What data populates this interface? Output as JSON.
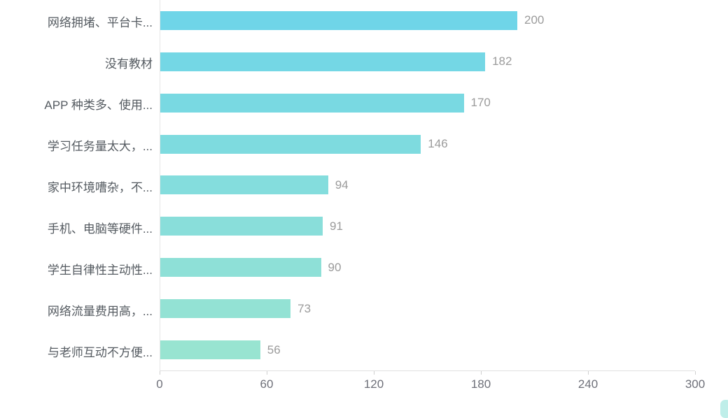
{
  "chart_data": {
    "type": "bar",
    "orientation": "horizontal",
    "title": "",
    "categories": [
      "网络拥堵、平台卡...",
      "没有教材",
      "APP 种类多、使用...",
      "学习任务量太大，...",
      "家中环境嘈杂，不...",
      "手机、电脑等硬件...",
      "学生自律性主动性...",
      "网络流量费用高，...",
      "与老师互动不方便..."
    ],
    "values": [
      200,
      182,
      170,
      146,
      94,
      91,
      90,
      73,
      56
    ],
    "bar_colors": [
      "#6FD5E8",
      "#74D7E5",
      "#79D9E2",
      "#7EDBDF",
      "#84DDDD",
      "#89DEDA",
      "#8EE0D7",
      "#93E2D4",
      "#98E4D1"
    ],
    "x_ticks": [
      0,
      60,
      120,
      180,
      240,
      300
    ],
    "xlim": [
      0,
      300
    ],
    "xlabel": "",
    "ylabel": "",
    "grid": false,
    "legend_position": "none",
    "value_labels_shown": true,
    "category_label_color": "#555b61",
    "value_label_color": "#9b9b9b",
    "tick_label_color": "#6e7079",
    "axis_line_color": "#e0e0e0",
    "corner_accent_color": "#a9e8e2"
  }
}
